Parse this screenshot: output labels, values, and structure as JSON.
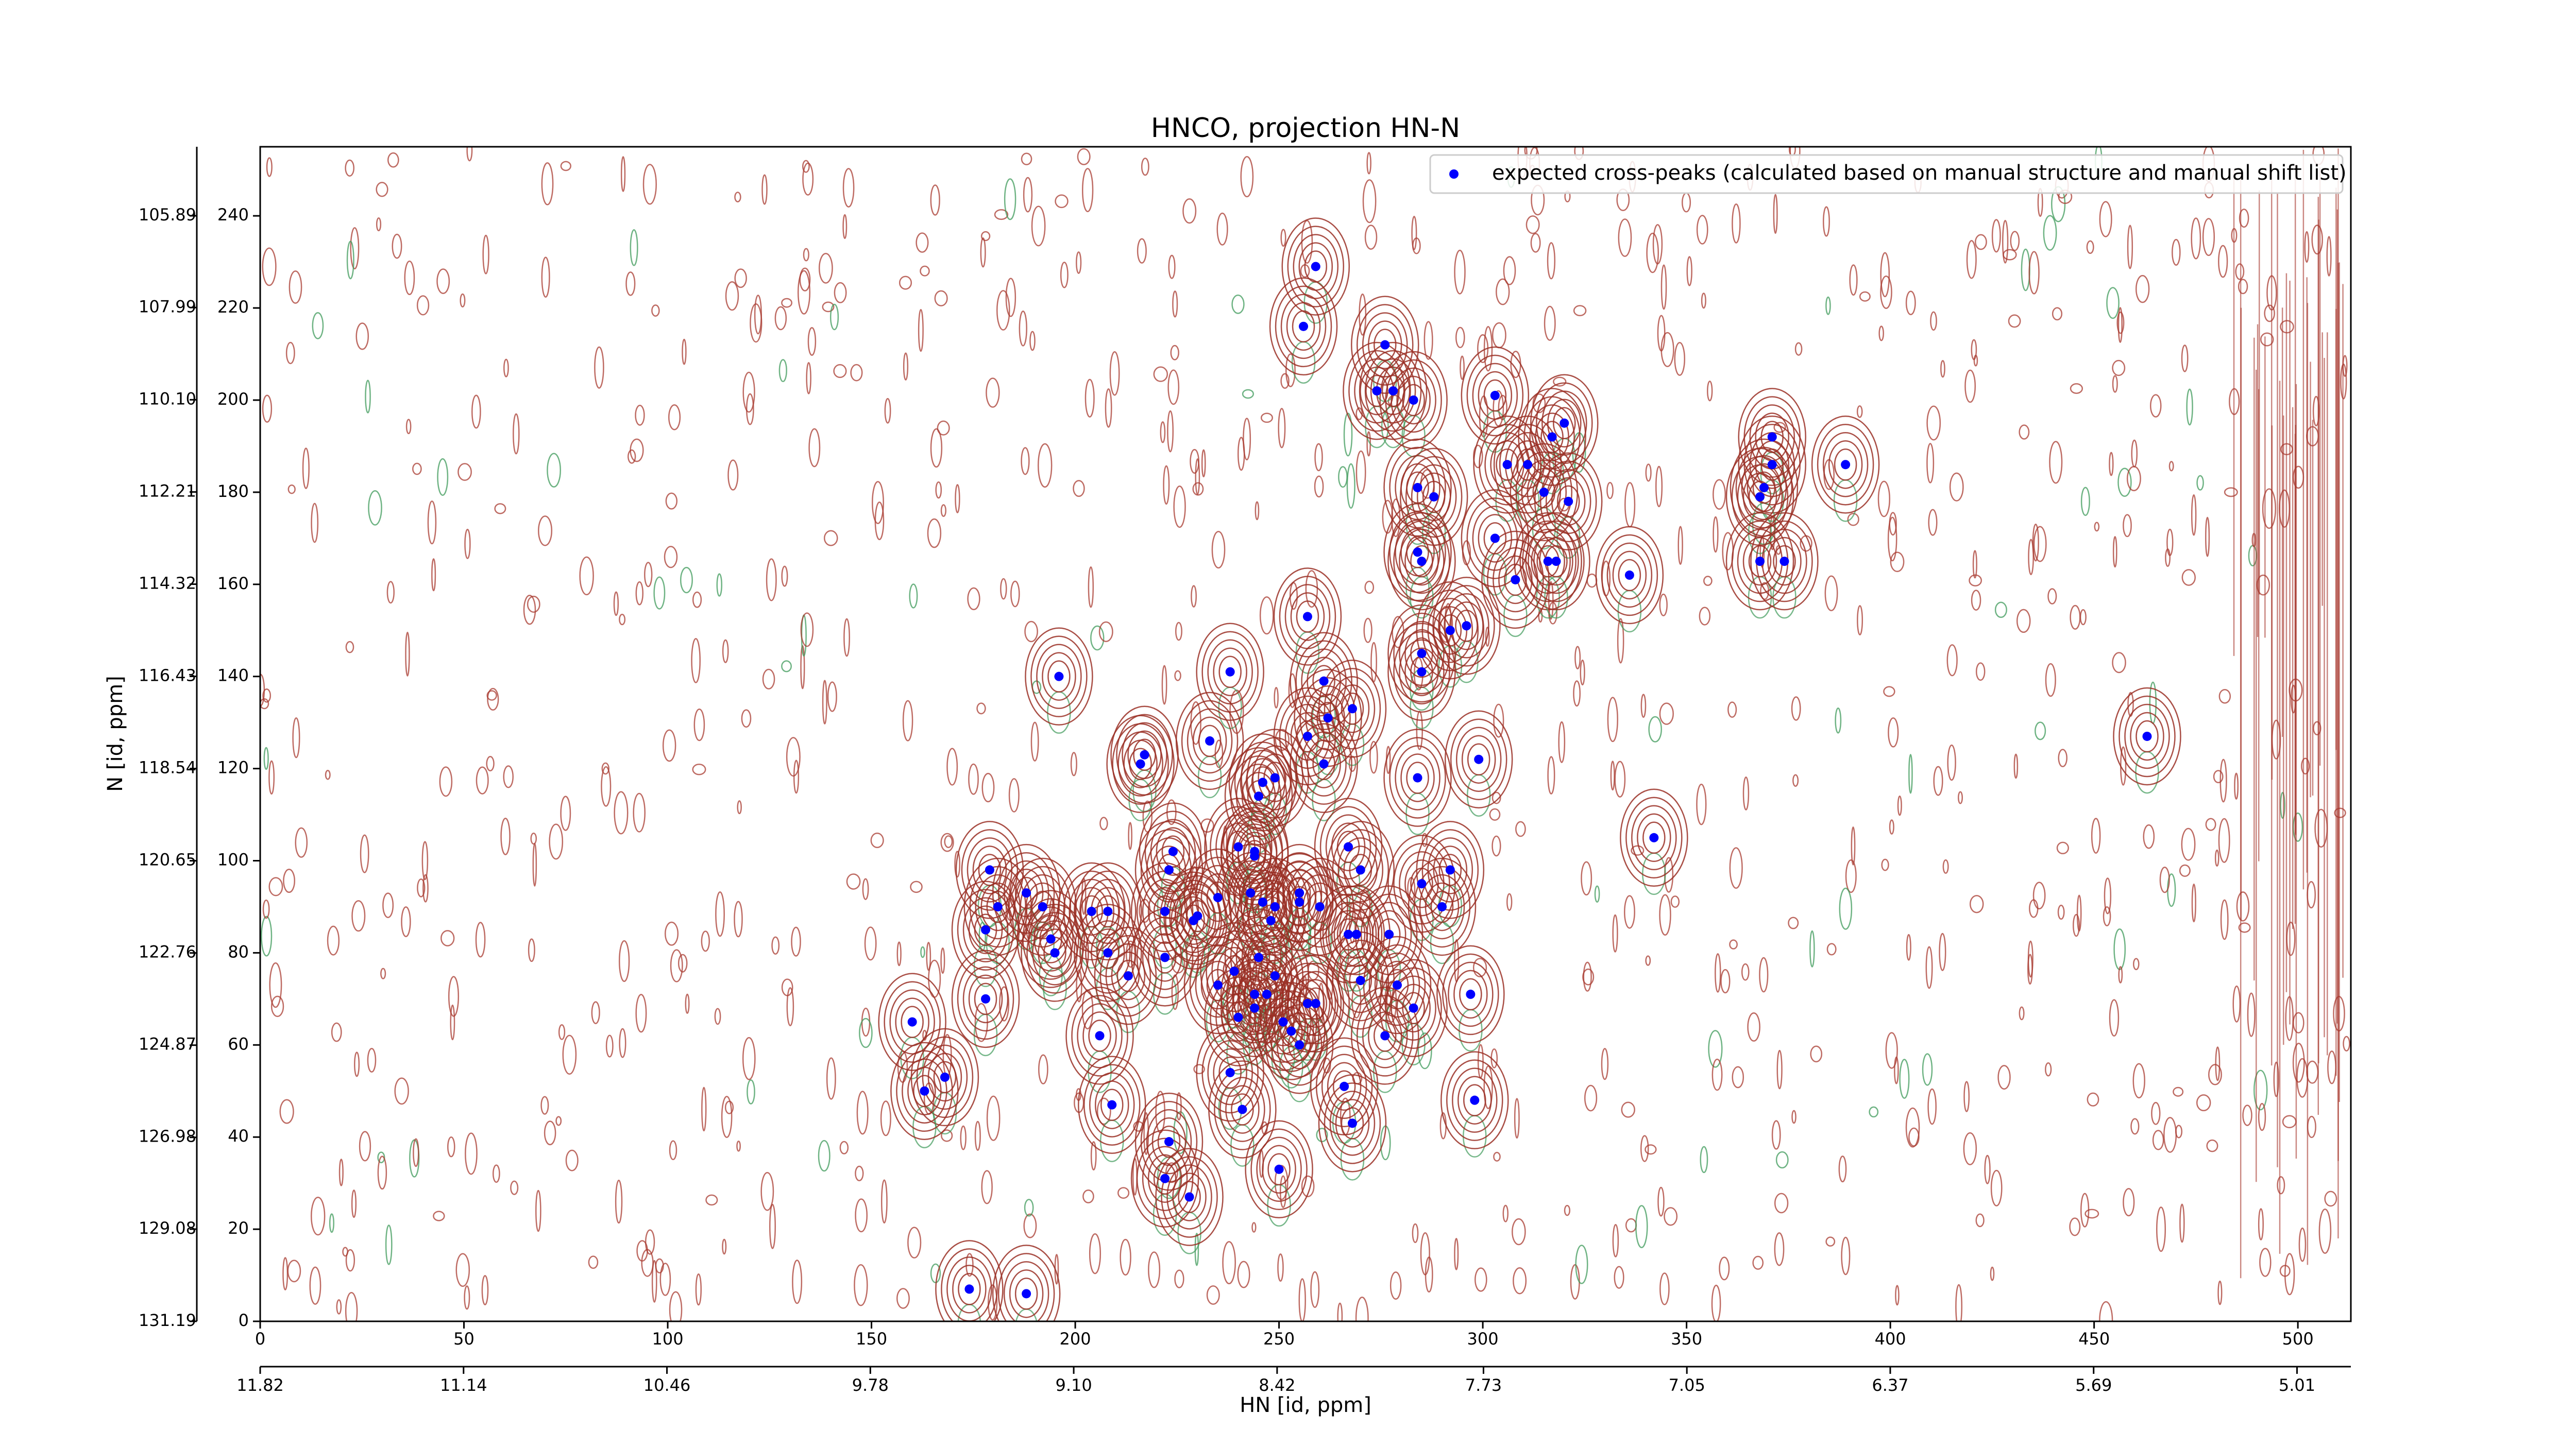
{
  "chart_data": {
    "type": "scatter",
    "title": "HNCO, projection HN-N",
    "xlabel": "HN [id, ppm]",
    "ylabel": "N [id, ppm]",
    "xlim": [
      0,
      513
    ],
    "xticks": [
      0,
      50,
      100,
      150,
      200,
      250,
      300,
      350,
      400,
      450,
      500
    ],
    "x2lim": [
      11.82,
      4.83
    ],
    "x2ticks": [
      11.82,
      11.14,
      10.46,
      9.78,
      {
        "value": 9.1,
        "label": "9.10"
      },
      8.42,
      7.73,
      7.05,
      6.37,
      5.69,
      5.01
    ],
    "ylim": [
      0,
      255
    ],
    "yticks": [
      0,
      20,
      40,
      60,
      80,
      100,
      120,
      140,
      160,
      180,
      200,
      220,
      240
    ],
    "y2lim": [
      131.19,
      104.31
    ],
    "y2ticks": [
      131.19,
      129.08,
      126.98,
      124.87,
      122.76,
      120.65,
      118.54,
      116.43,
      114.32,
      112.21,
      {
        "value": 110.1,
        "label": "110.10"
      },
      107.99,
      105.89
    ],
    "legend": "upper right",
    "series": [
      {
        "name": "expected cross-peaks (calculated based on manual structure and manual shift list)",
        "color": "#0000ff",
        "x": [
          259,
          256,
          276,
          274,
          278,
          283,
          303,
          320,
          317,
          306,
          311,
          389,
          371,
          371,
          369,
          368,
          368,
          374,
          315,
          321,
          284,
          288,
          284,
          285,
          316,
          318,
          303,
          308,
          336,
          257,
          296,
          292,
          285,
          285,
          196,
          238,
          261,
          268,
          262,
          257,
          217,
          216,
          233,
          284,
          299,
          261,
          249,
          246,
          245,
          463,
          342,
          244,
          244,
          267,
          179,
          223,
          224,
          240,
          270,
          285,
          292,
          181,
          178,
          188,
          192,
          204,
          194,
          195,
          208,
          222,
          230,
          229,
          235,
          243,
          246,
          249,
          255,
          255,
          260,
          248,
          267,
          269,
          277,
          290,
          208,
          213,
          222,
          245,
          235,
          239,
          244,
          247,
          249,
          257,
          259,
          270,
          279,
          283,
          297,
          178,
          160,
          240,
          244,
          251,
          253,
          255,
          276,
          206,
          238,
          168,
          163,
          209,
          241,
          266,
          268,
          298,
          223,
          222,
          228,
          250,
          174,
          188
        ],
        "values": [
          229,
          216,
          212,
          202,
          202,
          200,
          201,
          195,
          192,
          186,
          186,
          186,
          192,
          186,
          181,
          179,
          165,
          165,
          180,
          178,
          181,
          179,
          167,
          165,
          165,
          165,
          170,
          161,
          162,
          153,
          151,
          150,
          145,
          141,
          140,
          141,
          139,
          133,
          131,
          127,
          123,
          121,
          126,
          118,
          122,
          121,
          118,
          117,
          114,
          127,
          105,
          102,
          101,
          103,
          98,
          98,
          102,
          103,
          98,
          95,
          98,
          90,
          85,
          93,
          90,
          89,
          83,
          80,
          89,
          89,
          88,
          87,
          92,
          93,
          91,
          90,
          93,
          91,
          90,
          87,
          84,
          84,
          84,
          90,
          80,
          75,
          79,
          79,
          73,
          76,
          71,
          71,
          75,
          69,
          69,
          74,
          73,
          68,
          71,
          70,
          65,
          66,
          68,
          65,
          63,
          60,
          62,
          62,
          54,
          53,
          50,
          47,
          46,
          51,
          43,
          48,
          39,
          31,
          27,
          33,
          7,
          6
        ]
      }
    ]
  }
}
